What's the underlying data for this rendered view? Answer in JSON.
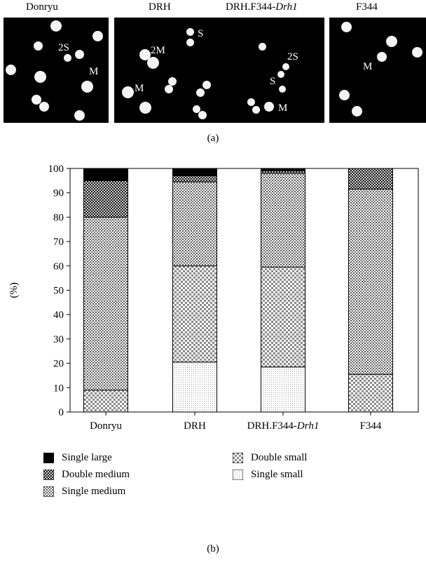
{
  "panel_a": {
    "caption": "(a)",
    "panels": [
      {
        "title": "Donryu",
        "labels": [
          {
            "text": "2S"
          },
          {
            "text": "M"
          }
        ]
      },
      {
        "title": "DRH",
        "labels": [
          {
            "text": "S"
          },
          {
            "text": "2M"
          },
          {
            "text": "M"
          }
        ]
      },
      {
        "title": "DRH.F344-",
        "title_italic": "Drh1",
        "labels": [
          {
            "text": "2S"
          },
          {
            "text": "S"
          },
          {
            "text": "M"
          }
        ]
      },
      {
        "title": "F344",
        "labels": [
          {
            "text": "M"
          }
        ]
      }
    ]
  },
  "panel_b": {
    "caption": "(b)"
  },
  "chart_data": {
    "type": "bar",
    "stacked": true,
    "ylabel": "(%)",
    "ylim": [
      0,
      100
    ],
    "yticks": [
      "0",
      "10",
      "20",
      "30",
      "40",
      "50",
      "60",
      "70",
      "80",
      "90",
      "100"
    ],
    "categories": [
      "Donryu",
      "DRH",
      "DRH.F344-Drh1",
      "F344"
    ],
    "category_labels": [
      {
        "text": "Donryu",
        "italic": ""
      },
      {
        "text": "DRH",
        "italic": ""
      },
      {
        "text": "DRH.F344-",
        "italic": "Drh1"
      },
      {
        "text": "F344",
        "italic": ""
      }
    ],
    "series": [
      {
        "name": "Single small",
        "pattern": "fine-dots",
        "values": [
          0,
          20.5,
          18.5,
          0
        ]
      },
      {
        "name": "Double small",
        "pattern": "checker",
        "values": [
          9,
          39.5,
          41,
          15.5
        ]
      },
      {
        "name": "Single medium",
        "pattern": "crosshatch",
        "values": [
          71,
          34.5,
          38.5,
          76
        ]
      },
      {
        "name": "Double medium",
        "pattern": "dense-check",
        "values": [
          15,
          2.5,
          1,
          8.5
        ]
      },
      {
        "name": "Single large",
        "pattern": "solid",
        "values": [
          5,
          3,
          1,
          0
        ]
      }
    ],
    "legend": {
      "placement": "bottom",
      "items": [
        "Single large",
        "Double medium",
        "Single medium",
        "Double small",
        "Single small"
      ]
    }
  }
}
